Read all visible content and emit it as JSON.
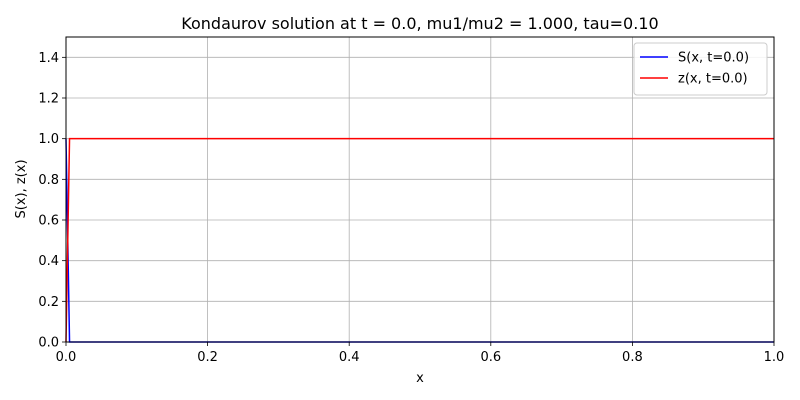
{
  "chart_data": {
    "type": "line",
    "title": "Kondaurov solution at t = 0.0, mu1/mu2 = 1.000, tau=0.10",
    "xlabel": "x",
    "ylabel": "S(x), z(x)",
    "xlim": [
      0.0,
      1.0
    ],
    "ylim": [
      0.0,
      1.5
    ],
    "grid": true,
    "legend_position": "top-right",
    "xticks": [
      {
        "value": 0.0,
        "label": "0.0"
      },
      {
        "value": 0.2,
        "label": "0.2"
      },
      {
        "value": 0.4,
        "label": "0.4"
      },
      {
        "value": 0.6,
        "label": "0.6"
      },
      {
        "value": 0.8,
        "label": "0.8"
      },
      {
        "value": 1.0,
        "label": "1.0"
      }
    ],
    "yticks": [
      {
        "value": 0.0,
        "label": "0.0"
      },
      {
        "value": 0.2,
        "label": "0.2"
      },
      {
        "value": 0.4,
        "label": "0.4"
      },
      {
        "value": 0.6,
        "label": "0.6"
      },
      {
        "value": 0.8,
        "label": "0.8"
      },
      {
        "value": 1.0,
        "label": "1.0"
      },
      {
        "value": 1.2,
        "label": "1.2"
      },
      {
        "value": 1.4,
        "label": "1.4"
      }
    ],
    "series": [
      {
        "name": "S(x, t=0.0)",
        "color": "#0000ff",
        "x": [
          0.0,
          0.005,
          1.0
        ],
        "y": [
          1.0,
          0.0,
          0.0
        ]
      },
      {
        "name": "z(x, t=0.0)",
        "color": "#ff0000",
        "x": [
          0.0,
          0.005,
          1.0
        ],
        "y": [
          0.0,
          1.0,
          1.0
        ]
      }
    ]
  }
}
